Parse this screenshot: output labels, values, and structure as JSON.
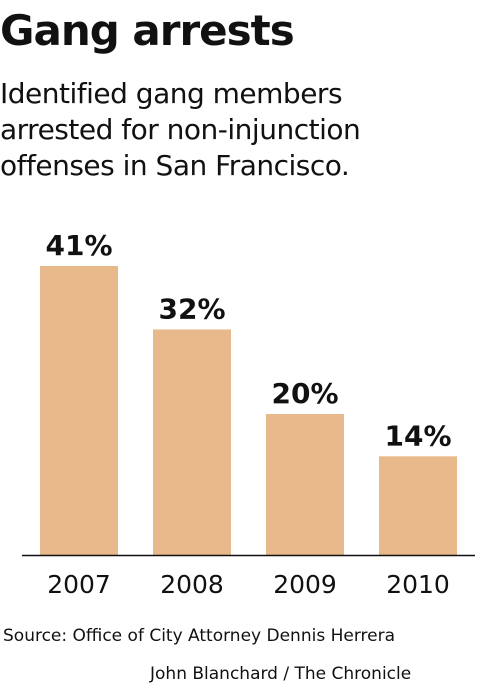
{
  "header": {
    "title": "Gang arrests",
    "subtitle_lines": [
      "Identified gang members",
      "arrested for non-injunction",
      "offenses in San Francisco."
    ]
  },
  "footer": {
    "source": "Source: Office of City Attorney Dennis Herrera",
    "credit": "John Blanchard / The Chronicle"
  },
  "colors": {
    "bar": "#e8b98a",
    "text": "#111111",
    "axis": "#111111"
  },
  "chart_data": {
    "type": "bar",
    "categories": [
      "2007",
      "2008",
      "2009",
      "2010"
    ],
    "values": [
      41,
      32,
      20,
      14
    ],
    "value_labels": [
      "41%",
      "32%",
      "20%",
      "14%"
    ],
    "ylim": [
      0,
      41
    ],
    "grid": false,
    "legend": "none"
  }
}
